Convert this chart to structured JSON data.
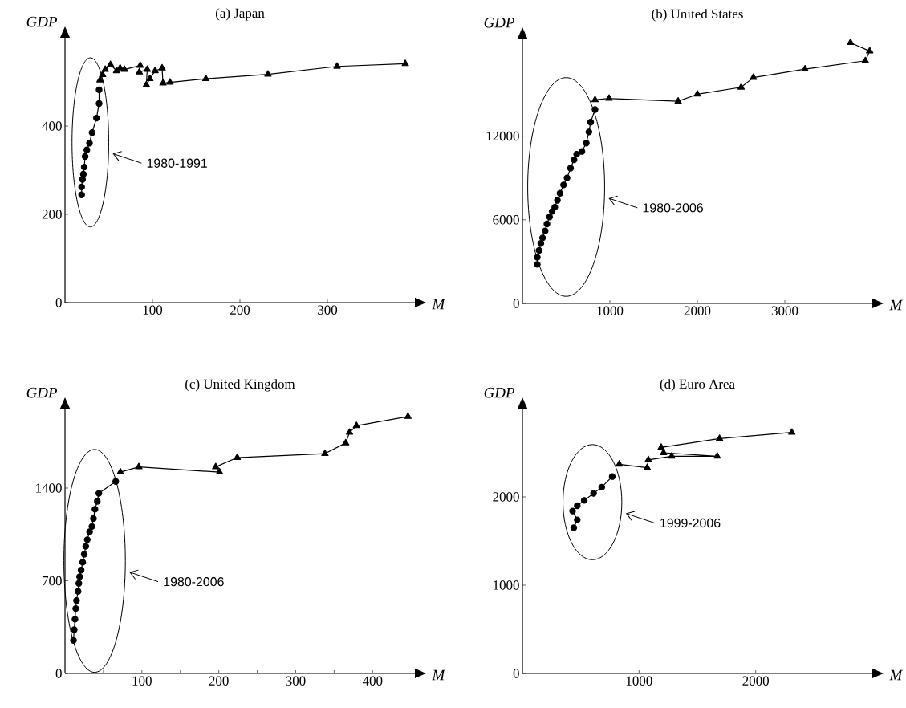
{
  "chart_data": [
    {
      "type": "line",
      "title": "(a) Japan",
      "xlabel": "M",
      "ylabel": "GDP",
      "xlim": [
        0,
        400
      ],
      "ylim": [
        0,
        600
      ],
      "xticks": [
        100,
        200,
        300
      ],
      "yticks": [
        0,
        200,
        400
      ],
      "line_style": "solid",
      "annotations": [
        "1980-1991"
      ],
      "series": [
        {
          "color": "#000000",
          "marker": "circle",
          "x": [
            19,
            19,
            20,
            21,
            22,
            23,
            25,
            28,
            31,
            36,
            39,
            39
          ],
          "values": [
            244,
            262,
            279,
            291,
            307,
            331,
            346,
            361,
            385,
            418,
            451,
            482
          ]
        },
        {
          "color": "#000000",
          "marker": "triangle",
          "x": [
            40,
            43,
            46,
            52,
            59,
            63,
            68,
            86,
            85,
            94,
            93,
            97,
            103,
            111,
            112,
            120,
            161,
            232,
            311,
            389
          ],
          "values": [
            504,
            516,
            528,
            539,
            525,
            531,
            528,
            537,
            522,
            528,
            493,
            507,
            525,
            531,
            497,
            499,
            507,
            517,
            535,
            541
          ]
        }
      ]
    },
    {
      "type": "line",
      "title": "(b) United States",
      "xlabel": "M",
      "ylabel": "GDP",
      "xlim": [
        0,
        4000
      ],
      "ylim": [
        0,
        19000
      ],
      "xticks": [
        1000,
        2000,
        3000
      ],
      "yticks": [
        0,
        6000,
        12000
      ],
      "line_style": "solid",
      "annotations": [
        "1980-2006"
      ],
      "series": [
        {
          "color": "#000000",
          "marker": "circle",
          "x": [
            170,
            170,
            190,
            210,
            230,
            260,
            280,
            310,
            340,
            370,
            400,
            430,
            470,
            510,
            550,
            590,
            620,
            680,
            730,
            760,
            780,
            830
          ],
          "values": [
            2800,
            3300,
            3800,
            4300,
            4700,
            5200,
            5700,
            6200,
            6600,
            6900,
            7400,
            7900,
            8500,
            9000,
            9700,
            10300,
            10700,
            10900,
            11500,
            12300,
            13000,
            13900
          ]
        },
        {
          "color": "#000000",
          "marker": "triangle",
          "x": [
            830,
            990,
            1780,
            2000,
            2500,
            2640,
            3230,
            3920,
            3970,
            3750
          ],
          "values": [
            14600,
            14700,
            14500,
            15000,
            15500,
            16200,
            16800,
            17400,
            18100,
            18700
          ]
        }
      ]
    },
    {
      "type": "line",
      "title": "(c) United Kingdom",
      "xlabel": "M",
      "ylabel": "GDP",
      "xlim": [
        0,
        455
      ],
      "ylim": [
        0,
        2000
      ],
      "xticks": [
        {
          "value": 50,
          "label": null
        },
        100,
        {
          "value": 150,
          "label": null
        },
        200,
        {
          "value": 250,
          "label": null
        },
        300,
        {
          "value": 350,
          "label": null
        },
        400
      ],
      "yticks": [
        0,
        700,
        1400
      ],
      "line_style": "solid",
      "annotations": [
        "1980-2006"
      ],
      "series": [
        {
          "color": "#000000",
          "marker": "circle",
          "x": [
            11,
            12,
            13,
            14,
            15,
            17,
            18,
            19,
            21,
            23,
            25,
            27,
            29,
            32,
            35,
            37,
            39,
            42,
            44,
            66
          ],
          "values": [
            250,
            330,
            410,
            490,
            550,
            620,
            680,
            730,
            780,
            840,
            900,
            960,
            1010,
            1070,
            1110,
            1170,
            1240,
            1300,
            1360,
            1450
          ]
        },
        {
          "color": "#000000",
          "marker": "triangle",
          "x": [
            72,
            96,
            201,
            196,
            224,
            338,
            365,
            370,
            379,
            446
          ],
          "values": [
            1520,
            1560,
            1520,
            1560,
            1630,
            1660,
            1740,
            1820,
            1870,
            1940
          ]
        }
      ]
    },
    {
      "type": "line",
      "title": "(d) Euro Area",
      "xlabel": "M",
      "ylabel": "GDP",
      "xlim": [
        0,
        3000
      ],
      "ylim": [
        0,
        3000
      ],
      "xticks": [
        1000,
        2000
      ],
      "yticks": [
        0,
        1000,
        2000
      ],
      "line_style": "solid",
      "annotations": [
        "1999-2006"
      ],
      "series": [
        {
          "color": "#000000",
          "marker": "circle",
          "x": [
            440,
            470,
            430,
            470,
            530,
            610,
            680,
            770
          ],
          "values": [
            1650,
            1740,
            1840,
            1900,
            1960,
            2040,
            2110,
            2230
          ]
        },
        {
          "color": "#000000",
          "marker": "triangle",
          "x": [
            830,
            1070,
            1080,
            1280,
            1670,
            1210,
            1190,
            1690,
            2310
          ],
          "values": [
            2370,
            2330,
            2420,
            2460,
            2460,
            2500,
            2560,
            2660,
            2730
          ]
        }
      ]
    }
  ]
}
